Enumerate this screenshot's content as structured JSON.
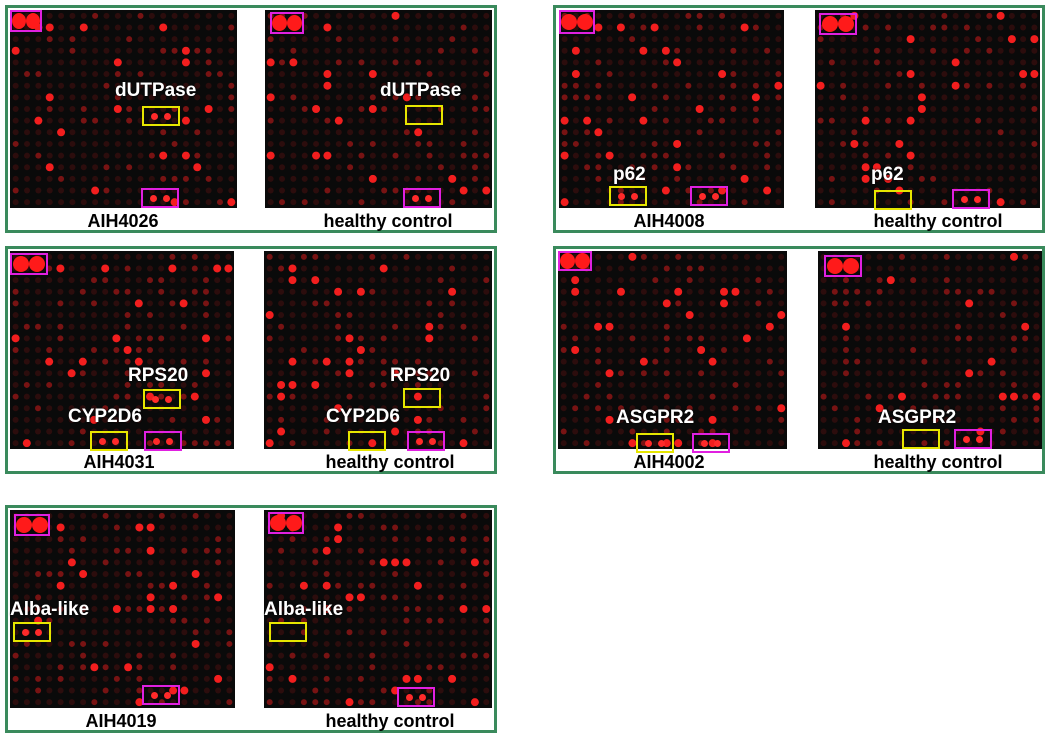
{
  "colors": {
    "border": "#3a8a5c",
    "positive_box": "#e020e0",
    "hit_box": "#e6e600",
    "spot": "#ff2020"
  },
  "panels": [
    {
      "id": "p1",
      "left": {
        "caption": "AIH4026",
        "marker": "dUTPase"
      },
      "right": {
        "caption": "healthy control",
        "marker": "dUTPase"
      }
    },
    {
      "id": "p2",
      "left": {
        "caption": "AIH4008",
        "marker": "p62"
      },
      "right": {
        "caption": "healthy control",
        "marker": "p62"
      }
    },
    {
      "id": "p3",
      "left": {
        "caption": "AIH4031",
        "marker": "RPS20",
        "marker2": "CYP2D6"
      },
      "right": {
        "caption": "healthy control",
        "marker": "RPS20",
        "marker2": "CYP2D6"
      }
    },
    {
      "id": "p4",
      "left": {
        "caption": "AIH4002",
        "marker": "ASGPR2"
      },
      "right": {
        "caption": "healthy control",
        "marker": "ASGPR2"
      }
    },
    {
      "id": "p5",
      "left": {
        "caption": "AIH4019",
        "marker": "Alba-like"
      },
      "right": {
        "caption": "healthy control",
        "marker": "Alba-like"
      }
    }
  ]
}
